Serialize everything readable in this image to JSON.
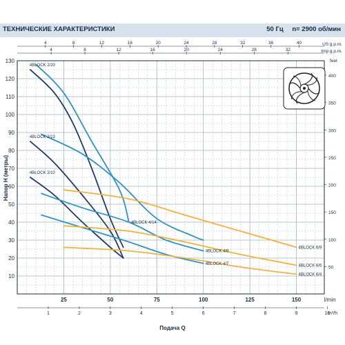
{
  "header": {
    "title": "ТЕХНИЧЕСКИЕ ХАРАКТЕРИСТИКИ",
    "frequency": "50 Гц",
    "speed": "n= 2900 об/мин"
  },
  "colors": {
    "header_bg": "#d6e3ee",
    "grid": "#9fb3c8",
    "navy": "#1f3a66",
    "teal": "#2f93c2",
    "orange": "#f0b23c",
    "axis_text": "#1a2a3a"
  },
  "icon": "impeller-icon",
  "chart_data": {
    "type": "line",
    "xlabel": "Подача Q",
    "ylabel": "Напор H (метры)",
    "x_unit": "l/min",
    "y_right_unit": "feet",
    "xlim": [
      0,
      165
    ],
    "ylim": [
      0,
      130
    ],
    "x_ticks": [
      25,
      50,
      75,
      100,
      125,
      150
    ],
    "y_ticks": [
      10,
      20,
      30,
      40,
      50,
      60,
      70,
      80,
      90,
      100,
      110,
      120,
      130
    ],
    "grid": true,
    "top_axes": [
      {
        "unit": "US g.p.m.",
        "ticks": [
          "4",
          "8",
          "12",
          "16",
          "20",
          "24",
          "28",
          "32",
          "36",
          "40"
        ],
        "per_tick_lmin": 15.142
      },
      {
        "unit": "Imp g.p.m.",
        "ticks": [
          "4",
          "8",
          "12",
          "16",
          "20",
          "24",
          "28",
          "32"
        ],
        "per_tick_lmin": 18.184
      }
    ],
    "right_axis": {
      "unit": "feet",
      "ticks": [
        "50",
        "100",
        "150",
        "200",
        "250",
        "300",
        "350",
        "400"
      ],
      "ft_per_m": 3.2808
    },
    "bottom_axis": {
      "unit": "m³/h",
      "ticks": [
        "1",
        "2",
        "3",
        "4",
        "5",
        "6",
        "7",
        "8",
        "9",
        "10"
      ],
      "per_tick_lmin": 16.667
    },
    "series": [
      {
        "name": "4BLOCK 2/20",
        "color": "navy",
        "label_pos": "start",
        "points": [
          [
            7,
            125
          ],
          [
            20,
            112
          ],
          [
            30,
            95
          ],
          [
            40,
            70
          ],
          [
            50,
            42
          ],
          [
            57,
            26
          ]
        ]
      },
      {
        "name": "4BLOCK 2/13",
        "color": "navy",
        "label_pos": "start",
        "points": [
          [
            7,
            85
          ],
          [
            20,
            73
          ],
          [
            35,
            55
          ],
          [
            50,
            35
          ],
          [
            57,
            20
          ]
        ]
      },
      {
        "name": "4BLOCK 2/10",
        "color": "navy",
        "label_pos": "start",
        "points": [
          [
            7,
            65
          ],
          [
            20,
            55
          ],
          [
            35,
            40
          ],
          [
            50,
            26
          ],
          [
            57,
            20
          ]
        ]
      },
      {
        "name": "4BLOCK 4/14",
        "color": "teal",
        "label_pos": "end",
        "points": [
          [
            10,
            128
          ],
          [
            25,
            112
          ],
          [
            40,
            85
          ],
          [
            55,
            58
          ],
          [
            60,
            40
          ]
        ]
      },
      {
        "name": "",
        "color": "teal",
        "label_pos": "none",
        "points": [
          [
            13,
            89
          ],
          [
            35,
            78
          ],
          [
            55,
            62
          ],
          [
            75,
            42
          ],
          [
            95,
            32
          ],
          [
            100,
            30
          ]
        ]
      },
      {
        "name": "4BLOCK 4/9",
        "color": "teal",
        "label_pos": "end",
        "points": [
          [
            13,
            56
          ],
          [
            35,
            48
          ],
          [
            60,
            40
          ],
          [
            80,
            30
          ],
          [
            100,
            24
          ]
        ]
      },
      {
        "name": "4BLOCK 4/7",
        "color": "teal",
        "label_pos": "end",
        "points": [
          [
            13,
            44
          ],
          [
            35,
            37
          ],
          [
            60,
            29
          ],
          [
            80,
            22
          ],
          [
            100,
            17
          ]
        ]
      },
      {
        "name": "4BLOCK 6/9",
        "color": "orange",
        "label_pos": "end",
        "points": [
          [
            25,
            58
          ],
          [
            60,
            53
          ],
          [
            90,
            44
          ],
          [
            120,
            35
          ],
          [
            150,
            26
          ]
        ]
      },
      {
        "name": "4BLOCK 6/6",
        "color": "orange",
        "label_pos": "end",
        "points": [
          [
            25,
            38
          ],
          [
            60,
            35
          ],
          [
            90,
            29
          ],
          [
            120,
            22
          ],
          [
            150,
            16
          ]
        ]
      },
      {
        "name": "4BLOCK 6/4",
        "color": "orange",
        "label_pos": "end",
        "points": [
          [
            25,
            26
          ],
          [
            60,
            24
          ],
          [
            90,
            20
          ],
          [
            120,
            15
          ],
          [
            150,
            11
          ]
        ]
      }
    ]
  }
}
